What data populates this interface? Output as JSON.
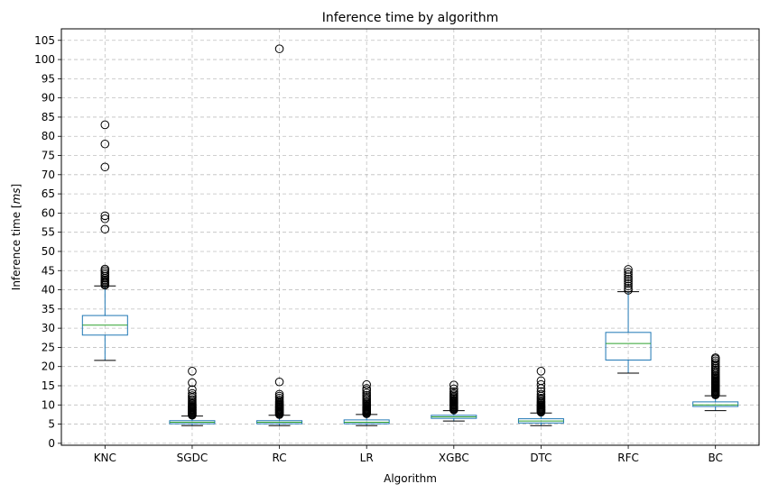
{
  "chart_data": {
    "type": "box",
    "title": "Inference time by algorithm",
    "xlabel": "Algorithm",
    "ylabel_prefix": "Inference time [",
    "ylabel_unit": "ms",
    "ylabel_suffix": "]",
    "ylim": [
      -0.5,
      108
    ],
    "yticks": [
      0,
      5,
      10,
      15,
      20,
      25,
      30,
      35,
      40,
      45,
      50,
      55,
      60,
      65,
      70,
      75,
      80,
      85,
      90,
      95,
      100,
      105
    ],
    "grid": true,
    "categories": [
      "KNC",
      "SGDC",
      "RC",
      "LR",
      "XGBC",
      "DTC",
      "RFC",
      "BC"
    ],
    "boxes": [
      {
        "name": "KNC",
        "whisker_low": 21.6,
        "q1": 28.2,
        "median": 30.8,
        "q3": 33.3,
        "whisker_high": 41.0,
        "outliers": [
          41.2,
          41.5,
          41.8,
          42.0,
          42.3,
          42.6,
          43.0,
          43.5,
          44.0,
          44.5,
          45.0,
          45.4,
          55.8,
          58.5,
          59.3,
          72.0,
          78.0,
          83.0
        ]
      },
      {
        "name": "SGDC",
        "whisker_low": 4.6,
        "q1": 5.1,
        "median": 5.5,
        "q3": 5.9,
        "whisker_high": 7.1,
        "outliers": [
          7.3,
          7.5,
          7.7,
          7.9,
          8.1,
          8.3,
          8.5,
          8.7,
          8.9,
          9.1,
          9.3,
          9.5,
          9.7,
          10.0,
          10.3,
          10.6,
          11.0,
          11.4,
          11.9,
          12.4,
          13.0,
          14.0,
          15.8,
          18.8
        ]
      },
      {
        "name": "RC",
        "whisker_low": 4.6,
        "q1": 5.1,
        "median": 5.5,
        "q3": 5.9,
        "whisker_high": 7.3,
        "outliers": [
          7.5,
          7.7,
          7.9,
          8.1,
          8.3,
          8.5,
          8.7,
          8.9,
          9.1,
          9.3,
          9.5,
          9.7,
          9.9,
          10.1,
          10.3,
          10.6,
          10.9,
          11.3,
          11.8,
          12.3,
          12.8,
          16.0,
          102.8
        ]
      },
      {
        "name": "LR",
        "whisker_low": 4.6,
        "q1": 5.1,
        "median": 5.5,
        "q3": 6.1,
        "whisker_high": 7.5,
        "outliers": [
          7.7,
          7.9,
          8.1,
          8.3,
          8.5,
          8.7,
          8.9,
          9.1,
          9.3,
          9.5,
          9.7,
          9.9,
          10.2,
          10.5,
          10.8,
          11.2,
          11.6,
          12.0,
          12.5,
          13.1,
          13.8,
          14.3,
          15.3
        ]
      },
      {
        "name": "XGBC",
        "whisker_low": 5.8,
        "q1": 6.5,
        "median": 6.9,
        "q3": 7.3,
        "whisker_high": 8.5,
        "outliers": [
          8.7,
          8.9,
          9.1,
          9.3,
          9.5,
          9.7,
          9.9,
          10.1,
          10.3,
          10.5,
          10.7,
          10.9,
          11.1,
          11.3,
          11.6,
          11.9,
          12.2,
          12.6,
          13.0,
          13.5,
          14.2,
          15.2
        ]
      },
      {
        "name": "DTC",
        "whisker_low": 4.6,
        "q1": 5.3,
        "median": 5.8,
        "q3": 6.4,
        "whisker_high": 7.9,
        "outliers": [
          8.1,
          8.3,
          8.5,
          8.7,
          8.9,
          9.1,
          9.3,
          9.5,
          9.7,
          9.9,
          10.1,
          10.4,
          10.7,
          11.0,
          11.4,
          11.8,
          12.3,
          12.8,
          13.5,
          14.3,
          15.3,
          16.3,
          18.8
        ]
      },
      {
        "name": "RFC",
        "whisker_low": 18.3,
        "q1": 21.7,
        "median": 26.0,
        "q3": 28.9,
        "whisker_high": 39.5,
        "outliers": [
          39.9,
          40.4,
          41.0,
          41.6,
          42.2,
          42.8,
          43.4,
          44.0,
          44.6,
          45.3
        ]
      },
      {
        "name": "BC",
        "whisker_low": 8.5,
        "q1": 9.6,
        "median": 10.0,
        "q3": 10.8,
        "whisker_high": 12.4,
        "outliers": [
          12.6,
          12.8,
          13.0,
          13.2,
          13.4,
          13.6,
          13.8,
          14.0,
          14.2,
          14.4,
          14.6,
          14.8,
          15.0,
          15.2,
          15.4,
          15.6,
          15.8,
          16.0,
          16.2,
          16.4,
          16.7,
          17.0,
          17.3,
          17.6,
          18.0,
          18.4,
          18.8,
          19.2,
          19.6,
          20.0,
          20.5,
          21.0,
          21.5,
          22.0,
          22.3
        ]
      }
    ],
    "colors": {
      "box": "#1f77b4",
      "median": "#2ca02c",
      "whisker": "#000000",
      "grid": "#b0b0b0",
      "outlier_edge": "#000000"
    }
  }
}
